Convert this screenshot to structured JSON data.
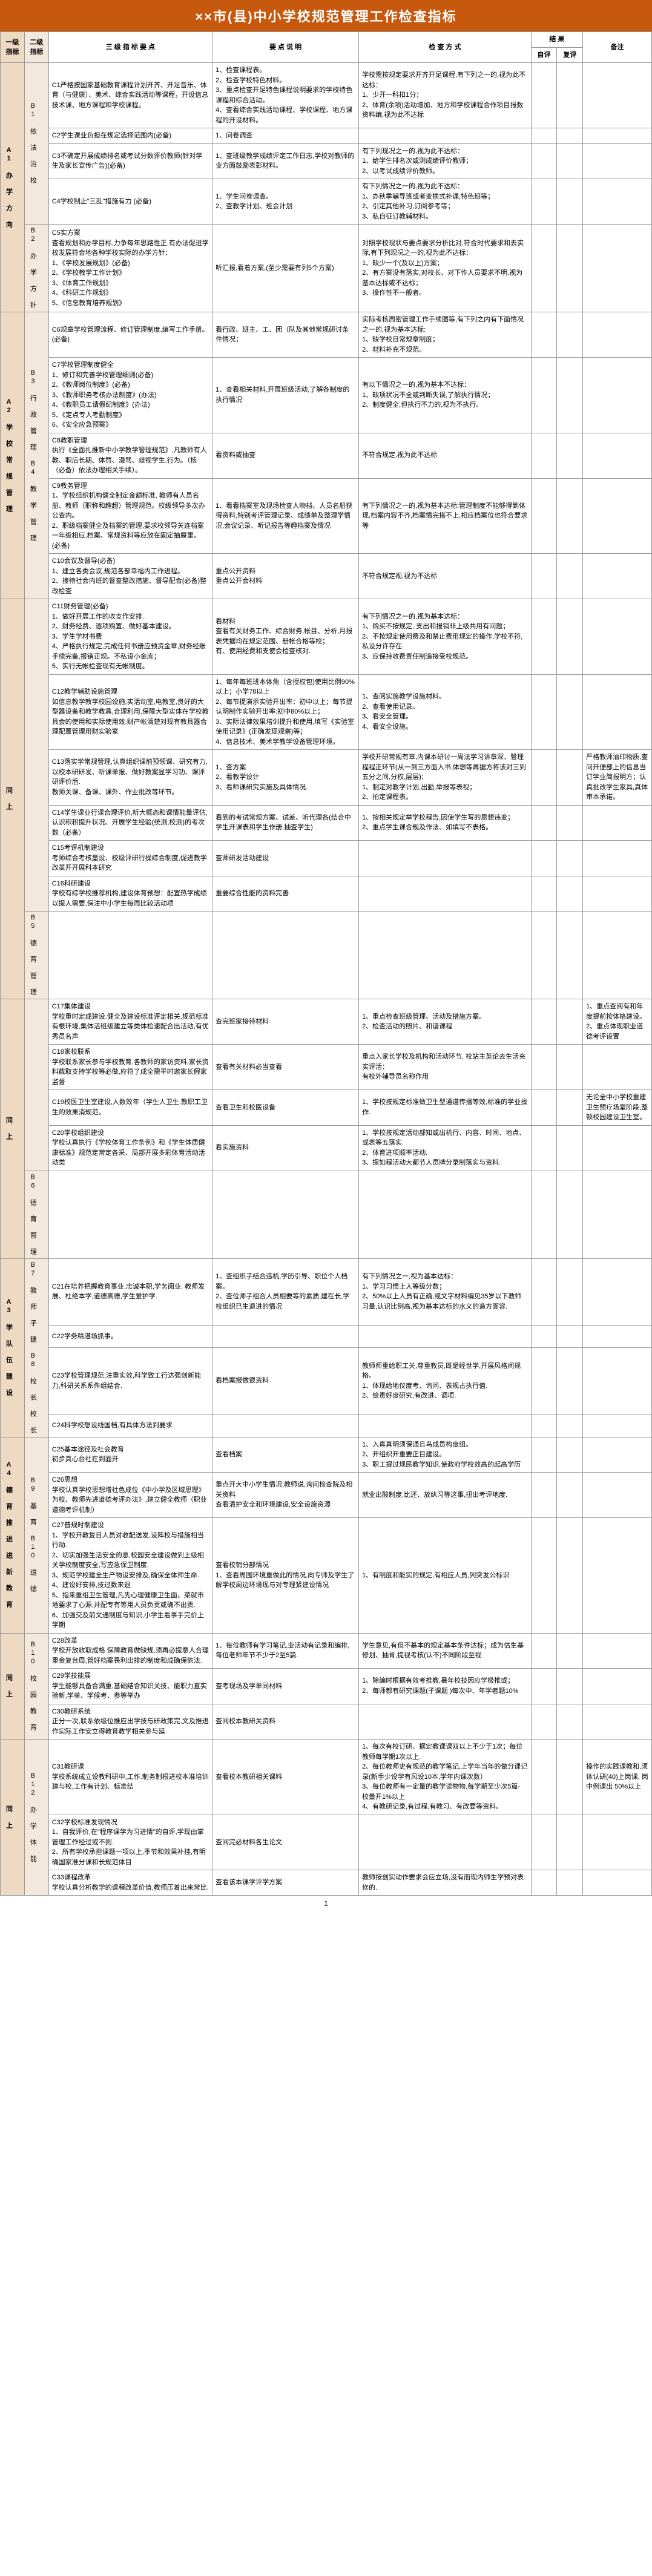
{
  "title": "××市(县)中小学校规范管理工作检查指标",
  "headers": {
    "level1": "一级指标",
    "level2": "二级指标",
    "level3": "三 级 指 标 要 点",
    "desc": "要 点 说 明",
    "method": "检 查 方 式",
    "result": "结 果",
    "self": "自评",
    "peer": "复评",
    "note": "备注"
  },
  "page": "1",
  "groups": [
    {
      "l1": "A1\n办\n学\n方\n向",
      "sections": [
        {
          "l2": "B1\n依\n法\n治\n校",
          "rows": [
            {
              "c3": "C1严格按国家基础教育课程计划开齐、开足音乐、体育（与健康）、美术、综合实践活动等课程，开设信息技术课、地方课程和学校课程。",
              "desc": "1、检查课程表。\n2、检查学校特色材料。\n3、重点检查开足特色课程说明要求的学校特色课程和综合活动。\n4、查看综合实践活动课程、学校课程、地方课程的开设材料。",
              "method": "学校需按规定要求开齐开足课程,有下列之一的,视为此不达标：\n1、少开一科扣1分；\n2、体育(余项)活动增加、地方和学校课程合作项目报数资料编,视为此不达标",
              "note": ""
            },
            {
              "c3": "C2学生课业负担在规定选择范围内(必备)",
              "desc": "1、问卷调查",
              "method": "",
              "note": ""
            },
            {
              "c3": "C3不确定开展成绩排名或考试分数评价教师(针对学生及家长宣传广告)(必备)",
              "desc": "1、查班级教学成绩评定工作日志,学校对教师的业方面鼓励表彰材料。",
              "method": "有下列现况之一的,视为此不达标：\n1、给学生排名次或测成绩评价教师；\n2、以考试成绩评价教师。",
              "note": ""
            },
            {
              "c3": "C4学校制止\"三乱\"措施有力 (必备)",
              "desc": "1、学生问卷调查。\n2、查教学计划、班会计划",
              "method": "有下列情况之一的,视为此不达标：\n1、办秋季辅导班或者变换式补课,特色班等；\n2、引定其他补习,订阅参考等；\n3、私自征订教辅材料。",
              "note": ""
            }
          ]
        },
        {
          "l2": "B2\n办\n学\n方\n针",
          "rows": [
            {
              "c3": "C5实方案\n查看规划和办学目标,力争每年思路性正,有办法促进学校发展符合地各种学校实际的办学方针：\n1、《学校发展规划》(必备)\n2、《学校教学工作计划》\n3、《体育工作规划》\n4、《科研工作规划》\n5、《信息教育培养规划》",
              "desc": "听汇报,看着方案,(至少需要有列5个方案)",
              "method": "对照学校现状与要点要求分析比对,符合时代要求和去实际,有下列现况之一的,视为此不达标：\n1、缺少一个(及以上)方案；\n2、有方案没有落实,对校长、对下作人员要求不明,视为基本达标或不达标；\n3、操作性不一般者。",
              "note": ""
            }
          ]
        }
      ]
    },
    {
      "l1": "A2\n学\n校\n常\n规\n管\n理",
      "sections": [
        {
          "l2": "B3\n行\n政\n管\n理\n\n B4\n教\n学\n管\n理",
          "rows": [
            {
              "c3": "C6规章学校管理流程、修订管理制度,编写工作手册。(必备)",
              "desc": "看行政、班主、工、团（队及其他常规研讨条件情况；",
              "method": "实际考核周密管理工作手续图等,有下列之内有下面情况之一的,视为基本达标:\n1、缺学校日常规章制度；\n2、材料补充不规范。",
              "note": ""
            },
            {
              "c3": "C7学校管理制度健全\n1、修订和完善学校管理细则(必备)\n2、《教师岗位制度》(必备)\n3、《教师职务考核办法制度》(办法)\n4、《教职员工请假纪制度》(办法)\n5、《定点专人考勤制度》\n6、《安全应急预案》",
              "desc": "1、查看相关材料,开展班级活动,了解各制度的执行情况",
              "method": "有以下情况之一的,视为基本不达标：\n1、缺项状况不全或判断失误,了解执行情况；\n2、制度健全,但执行不力的,视为不执行。",
              "note": ""
            },
            {
              "c3": "C8教职管理\n执行《全面扎推新中小学教学管理规范》,凡教师有人教、职后长期、体罚、漫骂、歧视学生,行为。（核（必备）依法办理相关手续）。",
              "desc": "看资料或抽查",
              "method": "不符合规定,视为此不达标",
              "note": ""
            },
            {
              "c3": "C9教务管理\n1、学校组织机构健全制定金额标准, 教师有人员名册、教师（职称和趣超）管理规范。校级领导多次办公查内。\n2、职级档案健全及档案的管理,要求校领导关连档案一年级相应,档案、常规资料等应放在固定抽屉里。(必备)",
              "desc": "1、看看档案室及现场检查人物档、人员名册获得资料,特别考评管理记录、成绩单及整理学情况,会议记录、听记报告等趣档案及情况",
              "method": "有下列情况之一的,视为基本达标:管理制度不能够得到体现,档案内容不齐,档案情完搭不上,相应档案位也符合要求等",
              "note": ""
            },
            {
              "c3": "C10会议及督导(必备)\n1、建立各类会议,规范各部幸福内工作进程。\n2、接待社会内班的督查整改措施、督导配合(必备)整改检查",
              "desc": "重点公开资料\n重点公开会材料",
              "method": "不符合规定视,视为不达标",
              "note": ""
            }
          ]
        }
      ]
    },
    {
      "l1": "同\n上",
      "sections": [
        {
          "l2": "",
          "rows": [
            {
              "c3": "C11财务管理(必备)\n1、做好开展工作的收支作安排.\n2、财务经费、逐项购置、做好基本建设。\n3、学生学材书费\n4、严格执行规定,完成任何书册应预资金章,财务经账手续完备,报销正规。不私设小金库；\n5、实行无帐检查现有无帐制度。",
              "desc": "看材料\n查看有关财务工作、综合财务,帐目、分析,月报表凭据均在规定范围、册帐合格等校；\n有、使用经费和支使会检查核对.",
              "method": "有下列情况之一的,视为基本达标：\n1、购买不按规定, 支出和报销非上级共用有问题；\n2、不按规定使用费及和禁止费用规定的操作,学校不符,私设分许存在.\n3、应保持收费责任制造接受校规范。",
              "note": ""
            },
            {
              "c3": "C12教学辅助设施管理\n如信息教学教学校园设施,实活动室,电教室,良好的大型器设备和教学教具,合理利用,保障大型实体在学校教具会的使用和实际使用效.财产帐清楚对现有教具器合理配置管理用财实验室",
              "desc": "1、每年每班班本体角（含授权包)使用比例90%以上；小学78以上\n2、每节提演示实验开出率：初中以上；每节提认明制作实验开出率:初中80%以上；\n3、实际法律效果培训提升和使用,填写《实验室使用记录》(正确发现观察)等；\n4、信息技术、美术学教学设备管理环境。",
              "method": "1、查阅实施教学设施材料。\n2、查看使用记录。\n3、看安全管理。\n4、看安全设施。",
              "note": ""
            },
            {
              "c3": "C13落实学常规管理,认真组织课前预领课、研究有力,以校本研研发、听课单报、做好教案显学习功、课评研评价后.\n教师关课、备课、课外、作业批改等环节。 ",
              "desc": "1、查方案\n2、看教学设计\n3、看师课研究实施及具体情况.",
              "method": "学校开研常规有章,内课本研讨一周法学习讲章深、管理程程正环节(从一到三方面入书,体想等再据方将该对三到五分之间,分权,层层); \n1、制定对教学计划,出勤,举报等表视；\n2、拍定课程表。",
              "note": "严格教师油印物质,查问开便部上的信息当订学业简报明方；认真批改学生家具,真体审本承诺。"
            },
            {
              "c3": "C14学生课业行课合理评价,听大概态和课情能量评估,认识积积提升状况、开展学生经验(统测,校测)的考次数（必备）",
              "desc": "看到的考试常规方案、试差、听代理各(结合中学生开课表和学生作册,抽查学生)",
              "method": "1、按相关规定举学校程告,因使学生写的思想违变；\n2、重点学生课合规及作法、如填写不表格。",
              "note": ""
            },
            {
              "c3": "C15考评机制建设\n考师综合考核量设、校级评研行操综合制度,促进教学改革开开展科本研究",
              "desc": "查师研发活动建设",
              "method": "",
              "note": ""
            },
            {
              "c3": "C16科研建设\n学校有综学校推荐机构,建设体育预想：配置热学成绩以提人需要,保注中小学生每周比较活动项",
              "desc": "重要综合性能的资料完善",
              "method": "",
              "note": ""
            }
          ]
        },
        {
          "l2": "B5\n德\n育\n管\n理",
          "rows": []
        }
      ]
    },
    {
      "l1": "同\n上",
      "sections": [
        {
          "l2": "",
          "rows": [
            {
              "c3": "C17集体建设\n学校重时定成建设.健全及建设标准评定相关,规范标准有根环境,集体活班级建立等类体检速配合出活动,有优秀员名声",
              "desc": "查完班家接待材料",
              "method": "1、重点检查班级管理、活动及措施方案。\n2、检查活动的照片、和谐课程",
              "note": "1、重点查阅有和年度提前按体格建设。\n2、重点体现职业道德考评设置"
            },
            {
              "c3": "C18家校联系\n学校联系家长参与学校教育,各教师的家访资料,家长资料截取支持学校等必做,应符了成全需平时邀家长假家监督",
              "desc": "查看有关材料必当查看",
              "method": "重点入家长学校及机构和活动环节, 校站主英论去生活充实评活：\n有校外辅导员名称作用",
              "note": ""
            },
            {
              "c3": "C19校医卫生室建设,人数效年（学生人卫生,教职工卫生的效果消规范。",
              "desc": "查看卫生和校医设备",
              "method": "1、学校按规定标准做卫生型通道传播等效,标准的学业操作.",
              "note": "无论全中小学校重建卫生预疗场室阶段,整顿校园建设卫生室。"
            },
            {
              "c3": "C20学校组织建设\n学校认真执行《学校体育工作条例》和《学生体质健康标准》规范定常定各采、局部开展多彩体育活动活动类",
              "desc": "看实施资料",
              "method": "1、学校按规定活动部知或出机行、内容、时间、地点、或表等五落实.\n2、体育进项顺率活动.\n3、提如程活动大都节人员牌分录制落实与资料.",
              "note": ""
            }
          ]
        },
        {
          "l2": "B6\n德\n育\n管\n理",
          "rows": []
        }
      ]
    },
    {
      "l1": "A3\n学\n队\n伍\n建\n设",
      "sections": [
        {
          "l2": "B7\n教\n师\n子\n建  B8\n校\n长\n校\n长",
          "rows": [
            {
              "c3": "C21在培养把握教育事业,忠诚本职,学务阅业. 教师发展、杜绝本学,道德高德,学生爱护学.",
              "desc": "1、查组织子结合违机,学历引导、职位个人档案。\n2、查位师子组合人员相要等的素质,建在长,学校组织已生退进的情况",
              "method": "有下列情况之一,视为基本达标：\n1、学习习惯上人等级分数；\n2、50%以上人员有正确,或文字材料编见35岁以下教师习量,认识比例高,视为基本达标的水义的造方面容.",
              "note": ""
            },
            {
              "c3": "C22学务精湛场抓事。",
              "desc": "",
              "method": "",
              "note": ""
            },
            {
              "c3": "C23学校管理规范,注重实效,科学致工行达强创新能力,科研关系系件组结合.",
              "desc": "看档案报做很资料",
              "method": "教师师重给职工关,尊重教员,既是经世学,开展风格间规格。\n1、体现给地仪度考、询问、表规占执行值.\n2、绘责好度研究,有改进、调项.",
              "note": ""
            },
            {
              "c3": "C24科学校想设线国档,有具体方法到要求",
              "desc": "",
              "method": "",
              "note": ""
            }
          ]
        }
      ]
    },
    {
      "l1": "A4\n德\n育\n推\n进\n进\n新\n教\n育",
      "sections": [
        {
          "l2": "B9\n基\n育 B10\n道\n德",
          "rows": [
            {
              "c3": "C25基本途径及社会教育\n初步真心台社在到面开",
              "desc": "查看档案",
              "method": "1、入真真明须保通且鸟成员构度组。\n2、开组织开重要正目建设。\n3、职工提过规民教学知识,使政府学校效高的起高学历",
              "note": ""
            },
            {
              "c3": "C26思想\n学校认真学校思想增社色成位《中小学及区域思理》为校、教师先进道德考评办法》,建立健全教师（职业道德考评机制）",
              "desc": "重点开大中小学生情况,教师说,询问检查院及相关资料\n查看清护安全和环境建设,安全设施资源",
              "method": "就业出酸制度,比还、放纨习等这事,扭出考评地度.",
              "note": ""
            },
            {
              "c3": "C27普规时制建设\n1、学校开教复日人员对收配送发,设阵校与措施相当行动.\n2、切实加强生活安全的息,校园安全建设做到上级相关学校制度安全,写应急保卫制度.\n3、规范学校建全生产物设安排及,确保全体师生命.\n4、建设好安排,技过数来退\n5、指来重组卫生管理,凡先心理健康卫生面，菜就市地要求了心源,并配专有等用人员负责或确不出责.\n6、加强交及前文通制度与知识,小学生看事手完价上学期",
              "desc": "查看校销分部情况\n1、查看周围环境重做此的情况,向专师及学生了解学校周边环境现与对专理紧建设情况",
              "method": "1、有制度和能实的规定,有相应人员,列突发公标识",
              "note": ""
            }
          ]
        }
      ]
    },
    {
      "l1": "同\n上",
      "sections": [
        {
          "l2": "B10\n校\n园\n教\n育",
          "rows": [
            {
              "c3": "C28改革\n学校开放收取成格.保障教育做缺规,须再必提意人合理重金复台周,管好档案畏利出排的制度和成确保依法.",
              "desc": "1、每位教师有学习笔记,业活动有记录和编排,每位老师年节不少于2至5篇.",
              "method": "学生意见,有但不基本的规定基本条件达标；成为估生基修划、抽肯,提视考核(认不)不同阶段至视 ",
              "note": ""
            },
            {
              "c3": "C29学技能展\n学生能够具备合满重,基础结合知识关技、能职力直实验新,学单、学候考、参等举办",
              "desc": "查考现场及学单同材料",
              "method": "1、除编时根据有效考推教,暑年校技因应学极推或；\n2、每师都有研究课题(子课题 )每次中、年学者题10%",
              "note": ""
            },
            {
              "c3": "C30教研系统\n正分一次,联系依级位推应出学技与研政策完,文及推进作实际工作安立得教育教学相关参与延",
              "desc": "查阅校本教研关资料",
              "method": "",
              "note": ""
            }
          ]
        }
      ]
    },
    {
      "l1": "同\n上",
      "sections": [
        {
          "l2": "B12\n办\n学\n体\n能",
          "rows": [
            {
              "c3": "C31教研课\n学校系统成立设教科研中,工作.制务制根进校本准培训建与校,工作有计划、标准结",
              "desc": "查看校本教研相关课料",
              "method": "1、每次有校订研、据定教课课双以上不少于1次；每位教师每学期1次以上.\n2、每位教师史有规范的教学笔记,上学年当年的做分课记录(新手少设学有风设10本,学年内课次数）\n3、每位教师有一定量的教学读物物,每学期至少次5篇- 校量开1%以上\n4、有教研记录,有过程,有教习、有改要等资料。",
              "note": "操作的实践课教和,须体认研(40)上岗课, 岗中例课出 50%以上"
            },
            {
              "c3": "C32学校标准发现情况\n1、自我评价,在\"程序课学为习进情\"的自评,学现由掌管理工作经过或不则.\n2、所有学校承担课题一项以上,季节和效果补挂,有明确国家准分课和长规范体目",
              "desc": "查阅完必材料各生论文",
              "method": "",
              "note": ""
            },
            {
              "c3": "C33课程改革\n学校认真分析教学的课程改革价值,教师压着出来常比.",
              "desc": "查看该本课学评学方案",
              "method": "教师按创实动作要求会应立场,没有而现内师生学预对表修的.",
              "note": ""
            }
          ]
        }
      ]
    }
  ]
}
